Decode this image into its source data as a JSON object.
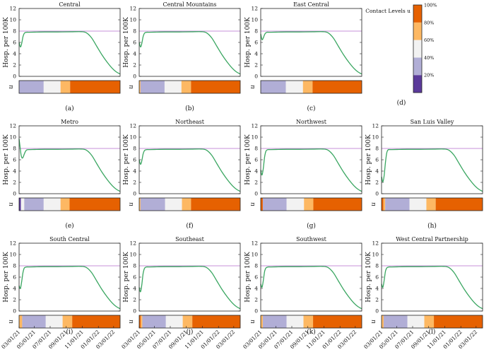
{
  "chart_data": {
    "type": "line",
    "ylabel": "Hosp. per 100K",
    "ulabel": "u",
    "ylim": [
      0,
      12
    ],
    "yticks": [
      "0",
      "2",
      "4",
      "6",
      "8",
      "10",
      "12"
    ],
    "xdomain_days": [
      0,
      390
    ],
    "xtick_days": [
      0,
      59,
      120,
      182,
      244,
      306,
      365
    ],
    "xtick_labels": [
      "03/01/21",
      "05/01/21",
      "07/01/21",
      "09/01/21",
      "11/01/21",
      "01/01/22",
      "03/01/22"
    ],
    "reference_level": 8,
    "colors": {
      "line": "#3aa661",
      "reference": "#c792d8",
      "level_20": "#5b3a9a",
      "level_40": "#b1aed6",
      "level_60": "#f2f2f2",
      "level_80": "#fdb863",
      "level_100": "#e66101"
    },
    "legend": {
      "title": "Contact Levels u",
      "ticks": [
        "20%",
        "40%",
        "60%",
        "80%",
        "100%"
      ]
    },
    "panels": [
      {
        "title": "Central",
        "letter": "(a)",
        "x": [
          0,
          5,
          10,
          15,
          20,
          25,
          30,
          40,
          60,
          100,
          150,
          200,
          240,
          260,
          280,
          300,
          320,
          340,
          360,
          375,
          390
        ],
        "y": [
          6.0,
          5.2,
          5.8,
          7.0,
          7.6,
          7.75,
          7.8,
          7.8,
          7.82,
          7.85,
          7.85,
          7.88,
          7.9,
          7.7,
          6.8,
          5.3,
          3.8,
          2.5,
          1.4,
          0.8,
          0.4
        ],
        "segments": [
          {
            "level": "level_40",
            "start": 0,
            "end": 95
          },
          {
            "level": "level_60",
            "start": 95,
            "end": 160
          },
          {
            "level": "level_80",
            "start": 160,
            "end": 197
          },
          {
            "level": "level_100",
            "start": 197,
            "end": 390
          }
        ]
      },
      {
        "title": "Central Mountains",
        "letter": "(b)",
        "x": [
          0,
          5,
          10,
          15,
          20,
          25,
          30,
          40,
          60,
          100,
          150,
          200,
          240,
          260,
          280,
          300,
          320,
          340,
          360,
          375,
          390
        ],
        "y": [
          6.0,
          5.2,
          5.8,
          7.0,
          7.6,
          7.75,
          7.8,
          7.8,
          7.82,
          7.85,
          7.85,
          7.88,
          7.9,
          7.7,
          6.8,
          5.3,
          3.8,
          2.5,
          1.4,
          0.8,
          0.4
        ],
        "segments": [
          {
            "level": "level_80",
            "start": 0,
            "end": 5
          },
          {
            "level": "level_40",
            "start": 5,
            "end": 98
          },
          {
            "level": "level_60",
            "start": 98,
            "end": 163
          },
          {
            "level": "level_80",
            "start": 163,
            "end": 200
          },
          {
            "level": "level_100",
            "start": 200,
            "end": 390
          }
        ]
      },
      {
        "title": "East Central",
        "letter": "(c)",
        "x": [
          0,
          5,
          10,
          15,
          20,
          25,
          30,
          40,
          60,
          100,
          150,
          200,
          240,
          260,
          280,
          300,
          320,
          340,
          360,
          375,
          390
        ],
        "y": [
          7.5,
          6.5,
          6.8,
          7.4,
          7.7,
          7.8,
          7.8,
          7.8,
          7.82,
          7.85,
          7.85,
          7.88,
          7.9,
          7.7,
          6.8,
          5.3,
          3.8,
          2.5,
          1.4,
          0.8,
          0.4
        ],
        "segments": [
          {
            "level": "level_40",
            "start": 0,
            "end": 97
          },
          {
            "level": "level_60",
            "start": 97,
            "end": 163
          },
          {
            "level": "level_80",
            "start": 163,
            "end": 200
          },
          {
            "level": "level_100",
            "start": 200,
            "end": 390
          }
        ]
      },
      {
        "title": "Metro",
        "letter": "(e)",
        "x": [
          0,
          4,
          8,
          12,
          16,
          20,
          25,
          30,
          40,
          60,
          100,
          150,
          200,
          240,
          260,
          280,
          300,
          320,
          340,
          360,
          375,
          390
        ],
        "y": [
          9.7,
          8.2,
          6.8,
          6.3,
          6.5,
          7.0,
          7.5,
          7.75,
          7.8,
          7.82,
          7.85,
          7.85,
          7.88,
          7.9,
          7.7,
          6.8,
          5.3,
          3.8,
          2.5,
          1.4,
          0.8,
          0.4
        ],
        "segments": [
          {
            "level": "level_20",
            "start": 0,
            "end": 7
          },
          {
            "level": "level_60",
            "start": 7,
            "end": 20
          },
          {
            "level": "level_40",
            "start": 20,
            "end": 95
          },
          {
            "level": "level_60",
            "start": 95,
            "end": 160
          },
          {
            "level": "level_80",
            "start": 160,
            "end": 195
          },
          {
            "level": "level_100",
            "start": 195,
            "end": 390
          }
        ]
      },
      {
        "title": "Northeast",
        "letter": "(f)",
        "x": [
          0,
          5,
          10,
          15,
          20,
          25,
          30,
          40,
          60,
          100,
          150,
          200,
          240,
          260,
          280,
          300,
          320,
          340,
          360,
          375,
          390
        ],
        "y": [
          6.0,
          5.2,
          5.8,
          7.0,
          7.6,
          7.75,
          7.8,
          7.8,
          7.82,
          7.85,
          7.85,
          7.88,
          7.9,
          7.7,
          6.8,
          5.3,
          3.8,
          2.5,
          1.4,
          0.8,
          0.4
        ],
        "segments": [
          {
            "level": "level_80",
            "start": 0,
            "end": 5
          },
          {
            "level": "level_40",
            "start": 5,
            "end": 100
          },
          {
            "level": "level_60",
            "start": 100,
            "end": 165
          },
          {
            "level": "level_80",
            "start": 165,
            "end": 200
          },
          {
            "level": "level_100",
            "start": 200,
            "end": 390
          }
        ]
      },
      {
        "title": "Northwest",
        "letter": "(g)",
        "x": [
          0,
          5,
          10,
          15,
          20,
          25,
          30,
          40,
          60,
          100,
          150,
          200,
          240,
          260,
          280,
          300,
          320,
          340,
          360,
          375,
          390
        ],
        "y": [
          4.2,
          3.3,
          4.5,
          6.5,
          7.5,
          7.75,
          7.8,
          7.8,
          7.82,
          7.85,
          7.85,
          7.88,
          7.9,
          7.7,
          6.8,
          5.3,
          3.8,
          2.5,
          1.4,
          0.8,
          0.4
        ],
        "segments": [
          {
            "level": "level_100",
            "start": 0,
            "end": 8
          },
          {
            "level": "level_40",
            "start": 8,
            "end": 100
          },
          {
            "level": "level_60",
            "start": 100,
            "end": 167
          },
          {
            "level": "level_80",
            "start": 167,
            "end": 203
          },
          {
            "level": "level_100",
            "start": 203,
            "end": 390
          }
        ]
      },
      {
        "title": "San Luis Valley",
        "letter": "(h)",
        "x": [
          0,
          5,
          10,
          15,
          20,
          25,
          30,
          40,
          60,
          100,
          150,
          200,
          240,
          260,
          280,
          300,
          320,
          340,
          360,
          375,
          390
        ],
        "y": [
          3.0,
          2.1,
          3.2,
          5.5,
          7.2,
          7.75,
          7.8,
          7.8,
          7.82,
          7.85,
          7.85,
          7.88,
          7.9,
          7.7,
          6.8,
          5.3,
          3.8,
          2.5,
          1.4,
          0.8,
          0.4
        ],
        "segments": [
          {
            "level": "level_100",
            "start": 0,
            "end": 7
          },
          {
            "level": "level_80",
            "start": 7,
            "end": 14
          },
          {
            "level": "level_40",
            "start": 14,
            "end": 108
          },
          {
            "level": "level_60",
            "start": 108,
            "end": 173
          },
          {
            "level": "level_80",
            "start": 173,
            "end": 209
          },
          {
            "level": "level_100",
            "start": 209,
            "end": 390
          }
        ]
      },
      {
        "title": "South Central",
        "letter": "(i)",
        "x": [
          0,
          5,
          10,
          15,
          20,
          25,
          30,
          40,
          60,
          100,
          150,
          200,
          240,
          260,
          280,
          300,
          320,
          340,
          360,
          375,
          390
        ],
        "y": [
          4.5,
          4.0,
          5.2,
          6.8,
          7.6,
          7.75,
          7.8,
          7.8,
          7.82,
          7.85,
          7.85,
          7.88,
          7.9,
          7.7,
          6.8,
          5.3,
          3.8,
          2.5,
          1.4,
          0.8,
          0.4
        ],
        "segments": [
          {
            "level": "level_80",
            "start": 0,
            "end": 12
          },
          {
            "level": "level_40",
            "start": 12,
            "end": 103
          },
          {
            "level": "level_60",
            "start": 103,
            "end": 168
          },
          {
            "level": "level_80",
            "start": 168,
            "end": 205
          },
          {
            "level": "level_100",
            "start": 205,
            "end": 390
          }
        ]
      },
      {
        "title": "Southeast",
        "letter": "(j)",
        "x": [
          0,
          5,
          10,
          15,
          20,
          25,
          30,
          40,
          60,
          100,
          150,
          200,
          240,
          260,
          280,
          300,
          320,
          340,
          360,
          375,
          390
        ],
        "y": [
          4.2,
          3.4,
          4.6,
          6.6,
          7.5,
          7.75,
          7.8,
          7.8,
          7.82,
          7.85,
          7.85,
          7.88,
          7.9,
          7.7,
          6.8,
          5.3,
          3.8,
          2.5,
          1.4,
          0.8,
          0.4
        ],
        "segments": [
          {
            "level": "level_100",
            "start": 0,
            "end": 6
          },
          {
            "level": "level_80",
            "start": 6,
            "end": 12
          },
          {
            "level": "level_40",
            "start": 12,
            "end": 103
          },
          {
            "level": "level_60",
            "start": 103,
            "end": 168
          },
          {
            "level": "level_80",
            "start": 168,
            "end": 205
          },
          {
            "level": "level_100",
            "start": 205,
            "end": 390
          }
        ]
      },
      {
        "title": "Southwest",
        "letter": "(k)",
        "x": [
          0,
          5,
          10,
          15,
          20,
          25,
          30,
          40,
          60,
          100,
          150,
          200,
          240,
          260,
          280,
          300,
          320,
          340,
          360,
          375,
          390
        ],
        "y": [
          4.8,
          4.2,
          5.4,
          7.0,
          7.6,
          7.75,
          7.8,
          7.8,
          7.82,
          7.85,
          7.85,
          7.88,
          7.9,
          7.7,
          6.8,
          5.3,
          3.8,
          2.5,
          1.4,
          0.8,
          0.4
        ],
        "segments": [
          {
            "level": "level_80",
            "start": 0,
            "end": 8
          },
          {
            "level": "level_40",
            "start": 8,
            "end": 100
          },
          {
            "level": "level_60",
            "start": 100,
            "end": 165
          },
          {
            "level": "level_80",
            "start": 165,
            "end": 202
          },
          {
            "level": "level_100",
            "start": 202,
            "end": 390
          }
        ]
      },
      {
        "title": "West Central Partnership",
        "letter": "(l)",
        "x": [
          0,
          5,
          10,
          15,
          20,
          25,
          30,
          40,
          60,
          100,
          150,
          200,
          240,
          260,
          280,
          300,
          320,
          340,
          360,
          375,
          390
        ],
        "y": [
          4.8,
          4.2,
          5.4,
          7.0,
          7.6,
          7.75,
          7.8,
          7.8,
          7.82,
          7.85,
          7.85,
          7.88,
          7.9,
          7.7,
          6.8,
          5.3,
          3.8,
          2.5,
          1.4,
          0.8,
          0.4
        ],
        "segments": [
          {
            "level": "level_80",
            "start": 0,
            "end": 8
          },
          {
            "level": "level_40",
            "start": 8,
            "end": 100
          },
          {
            "level": "level_60",
            "start": 100,
            "end": 165
          },
          {
            "level": "level_80",
            "start": 165,
            "end": 202
          },
          {
            "level": "level_100",
            "start": 202,
            "end": 390
          }
        ]
      }
    ],
    "legend_panel_letter": "(d)"
  }
}
